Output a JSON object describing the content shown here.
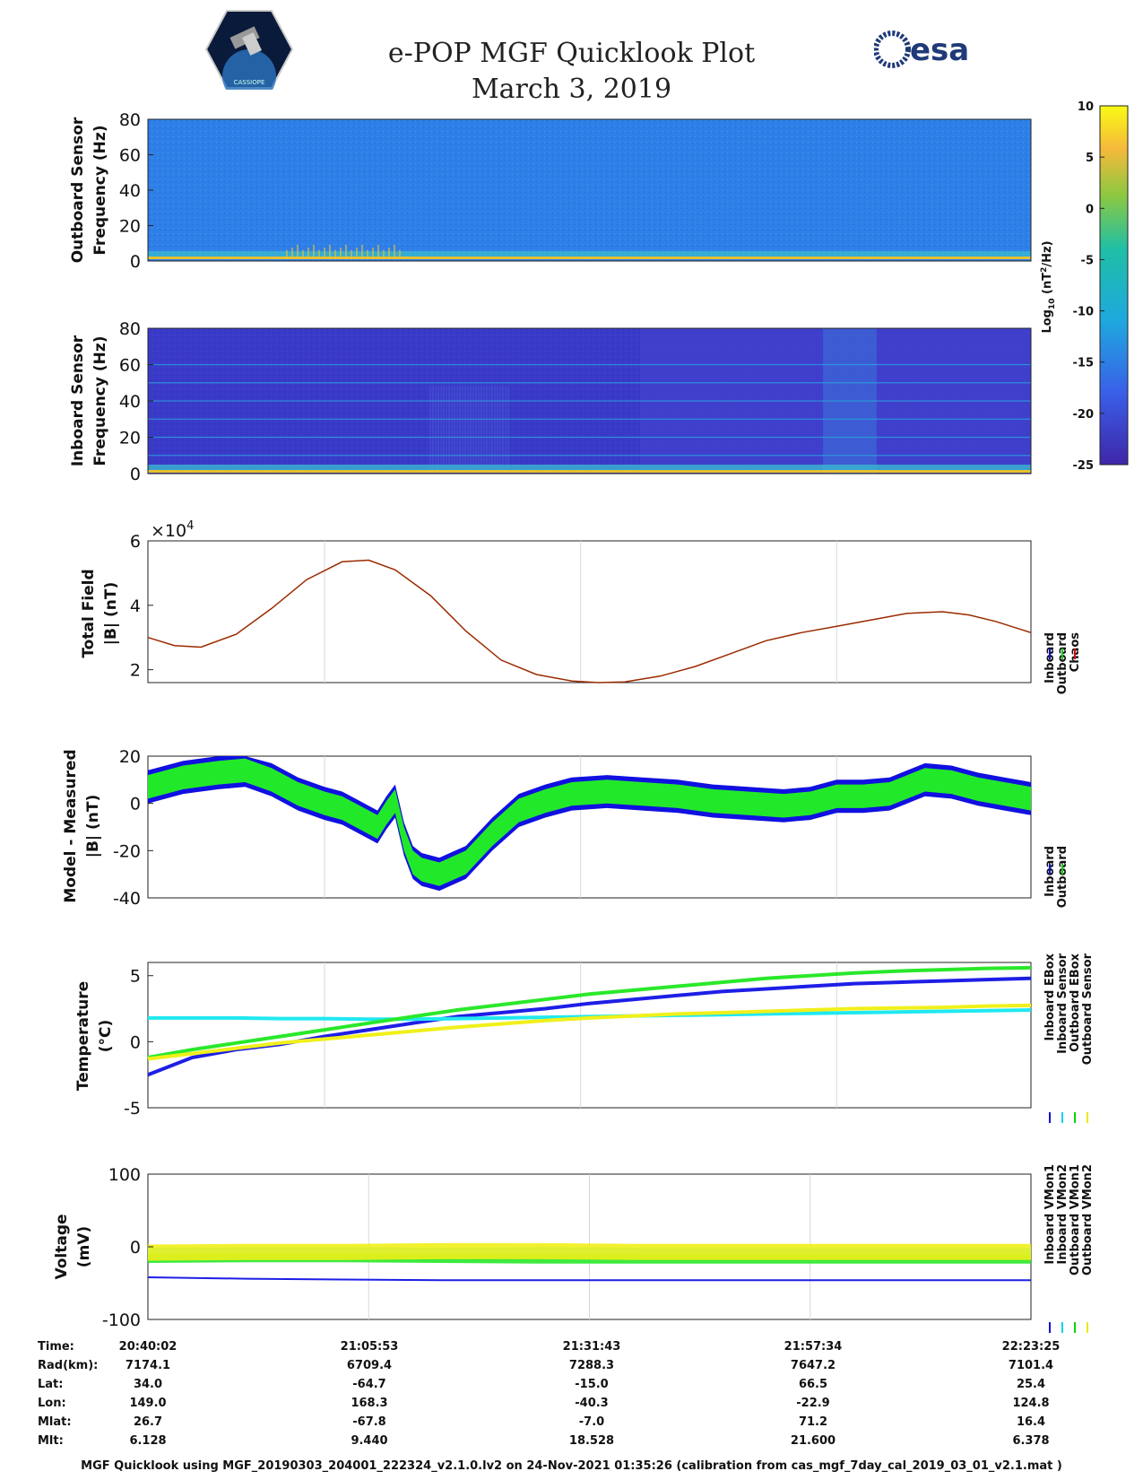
{
  "header": {
    "title_line1": "e-POP MGF Quicklook Plot",
    "title_line2": "March 3, 2019",
    "left_logo_text": "CASSIOPE",
    "right_logo_text": "esa"
  },
  "colorbar": {
    "ticks": [
      "10",
      "5",
      "0",
      "-5",
      "-10",
      "-15",
      "-20",
      "-25"
    ],
    "label": "Log10 (nT2/Hz)",
    "label_parts": {
      "a": "Log",
      "sub": "10",
      "b": " (nT",
      "sup": "2",
      "c": "/Hz)"
    },
    "range": [
      -25,
      10
    ]
  },
  "chart_data": [
    {
      "type": "heatmap",
      "name": "outboard-spectrogram",
      "ylabel_line1": "Outboard Sensor",
      "ylabel_line2": "Frequency (Hz)",
      "ytick_labels": [
        "80",
        "60",
        "40",
        "20",
        "0"
      ],
      "ylim": [
        0,
        80
      ],
      "colors": {
        "background": "#2f7fe8",
        "band": "#e6c12e"
      }
    },
    {
      "type": "heatmap",
      "name": "inboard-spectrogram",
      "ylabel_line1": "Inboard Sensor",
      "ylabel_line2": "Frequency (Hz)",
      "ytick_labels": [
        "80",
        "60",
        "40",
        "20",
        "0"
      ],
      "ylim": [
        0,
        80
      ],
      "harmonic_lines_hz": [
        10,
        20,
        30,
        40,
        50,
        60
      ],
      "colors": {
        "background": "#3a3ac9",
        "line": "#2aa6e0",
        "band": "#e6c12e"
      }
    },
    {
      "type": "line",
      "name": "total-field",
      "ylabel_line1": "Total Field",
      "ylabel_line2": "|B| (nT)",
      "multiplier_label": "×10",
      "multiplier_exp": "4",
      "ytick_labels": [
        "6",
        "4",
        "2"
      ],
      "ylim": [
        1.6,
        6
      ],
      "x_frac": [
        0,
        0.03,
        0.06,
        0.1,
        0.14,
        0.18,
        0.22,
        0.25,
        0.28,
        0.32,
        0.36,
        0.4,
        0.44,
        0.48,
        0.51,
        0.54,
        0.58,
        0.62,
        0.66,
        0.7,
        0.74,
        0.78,
        0.82,
        0.86,
        0.9,
        0.93,
        0.96,
        1
      ],
      "series": [
        {
          "name": "Chaos",
          "color": "#b22000",
          "values": [
            3.0,
            2.75,
            2.7,
            3.1,
            3.9,
            4.8,
            5.35,
            5.4,
            5.1,
            4.3,
            3.2,
            2.3,
            1.85,
            1.65,
            1.6,
            1.62,
            1.8,
            2.1,
            2.5,
            2.9,
            3.15,
            3.35,
            3.55,
            3.75,
            3.8,
            3.7,
            3.5,
            3.15
          ]
        }
      ],
      "legend": [
        "Inboard",
        "Outboard",
        "Chaos"
      ],
      "legend_colors": [
        "#1010d0",
        "#10d010",
        "#d01010"
      ]
    },
    {
      "type": "area",
      "name": "model-minus-measured",
      "ylabel_line1": "Model - Measured",
      "ylabel_line2": "|B| (nT)",
      "ytick_labels": [
        "20",
        "0",
        "-20",
        "-40"
      ],
      "ylim": [
        -40,
        20
      ],
      "x_frac": [
        0,
        0.04,
        0.08,
        0.11,
        0.14,
        0.17,
        0.2,
        0.22,
        0.24,
        0.26,
        0.27,
        0.28,
        0.29,
        0.3,
        0.31,
        0.33,
        0.36,
        0.39,
        0.42,
        0.45,
        0.48,
        0.52,
        0.56,
        0.6,
        0.64,
        0.68,
        0.72,
        0.75,
        0.78,
        0.81,
        0.84,
        0.86,
        0.88,
        0.91,
        0.94,
        0.97,
        1
      ],
      "series": [
        {
          "name": "Inboard",
          "color": "#0b0be0",
          "values": [
            7,
            11,
            13,
            14,
            10,
            4,
            0,
            -2,
            -6,
            -10,
            -4,
            1,
            -15,
            -25,
            -28,
            -30,
            -25,
            -13,
            -3,
            1,
            4,
            5,
            4,
            3,
            1,
            0,
            -1,
            0,
            3,
            3,
            4,
            7,
            10,
            9,
            6,
            4,
            2
          ]
        },
        {
          "name": "Outboard",
          "color": "#22e82a",
          "values": [
            7,
            11,
            13,
            14,
            10,
            4,
            0,
            -2,
            -6,
            -10,
            -4,
            1,
            -15,
            -25,
            -28,
            -30,
            -25,
            -13,
            -3,
            1,
            4,
            5,
            4,
            3,
            1,
            0,
            -1,
            0,
            3,
            3,
            4,
            7,
            10,
            9,
            6,
            4,
            2
          ]
        }
      ],
      "band_half_width": {
        "Inboard": 7,
        "Outboard": 5
      },
      "legend": [
        "Inboard",
        "Outboard"
      ],
      "legend_colors": [
        "#1010d0",
        "#10d010"
      ]
    },
    {
      "type": "line",
      "name": "temperature",
      "ylabel_line1": "Temperature",
      "ylabel_line2": "(°C)",
      "ytick_labels": [
        "5",
        "0",
        "-5"
      ],
      "ylim": [
        -5,
        6
      ],
      "x_frac": [
        0,
        0.05,
        0.1,
        0.15,
        0.2,
        0.25,
        0.3,
        0.35,
        0.4,
        0.45,
        0.5,
        0.55,
        0.6,
        0.65,
        0.7,
        0.75,
        0.8,
        0.85,
        0.9,
        0.95,
        1
      ],
      "series": [
        {
          "name": "Inboard EBox",
          "color": "#1e1ee6",
          "values": [
            -2.5,
            -1.2,
            -0.6,
            -0.2,
            0.4,
            0.9,
            1.4,
            1.9,
            2.2,
            2.5,
            2.9,
            3.2,
            3.5,
            3.8,
            4.0,
            4.2,
            4.4,
            4.5,
            4.6,
            4.7,
            4.8
          ]
        },
        {
          "name": "Inboard Sensor",
          "color": "#20e8f0",
          "values": [
            1.8,
            1.8,
            1.8,
            1.75,
            1.75,
            1.7,
            1.7,
            1.75,
            1.8,
            1.85,
            1.9,
            1.95,
            2.0,
            2.05,
            2.1,
            2.15,
            2.2,
            2.25,
            2.3,
            2.35,
            2.4
          ]
        },
        {
          "name": "Outboard EBox",
          "color": "#2ae82a",
          "values": [
            -1.2,
            -0.6,
            -0.1,
            0.4,
            0.9,
            1.4,
            1.9,
            2.4,
            2.8,
            3.2,
            3.6,
            3.9,
            4.2,
            4.5,
            4.8,
            5.0,
            5.2,
            5.35,
            5.45,
            5.55,
            5.6
          ]
        },
        {
          "name": "Outboard Sensor",
          "color": "#f0f01a",
          "values": [
            -1.3,
            -0.9,
            -0.5,
            -0.1,
            0.2,
            0.5,
            0.8,
            1.1,
            1.35,
            1.6,
            1.8,
            1.95,
            2.1,
            2.2,
            2.3,
            2.4,
            2.5,
            2.55,
            2.6,
            2.7,
            2.75
          ]
        }
      ],
      "legend": [
        "Inboard EBox",
        "Inboard Sensor",
        "Outboard EBox",
        "Outboard Sensor"
      ],
      "legend_colors": [
        "#1010d0",
        "#10d0f0",
        "#10d010",
        "#e8e810"
      ]
    },
    {
      "type": "line",
      "name": "voltage",
      "ylabel_line1": "Voltage",
      "ylabel_line2": "(mV)",
      "ytick_labels": [
        "100",
        "0",
        "-100"
      ],
      "ylim": [
        -100,
        100
      ],
      "series": [
        {
          "name": "Inboard VMon1",
          "color": "#1e1ee6",
          "values": [
            -42,
            -44,
            -45,
            -46,
            -46,
            -46,
            -46,
            -46,
            -46,
            -46
          ]
        },
        {
          "name": "Inboard VMon2",
          "color": "#20e8f0",
          "values": [
            -10,
            -9,
            -9,
            -10,
            -9,
            -10,
            -10,
            -10,
            -10,
            -10
          ]
        },
        {
          "name": "Outboard VMon1",
          "color": "#2ae82a",
          "values": [
            -16,
            -15,
            -15,
            -16,
            -17,
            -17,
            -17,
            -17,
            -17,
            -17
          ]
        },
        {
          "name": "Outboard VMon2",
          "color": "#f0f01a",
          "values": [
            -8,
            -7,
            -7,
            -6,
            -6,
            -7,
            -7,
            -7,
            -7,
            -7
          ]
        }
      ],
      "legend": [
        "Inboard VMon1",
        "Inboard VMon2",
        "Outboard VMon1",
        "Outboard VMon2"
      ],
      "legend_colors": [
        "#1010d0",
        "#10d0f0",
        "#10d010",
        "#e8e810"
      ]
    }
  ],
  "ephemeris": {
    "row_labels": [
      "Time:",
      "Rad(km):",
      "Lat:",
      "Lon:",
      "Mlat:",
      "Mlt:"
    ],
    "columns": [
      [
        "20:40:02",
        "7174.1",
        "34.0",
        "149.0",
        "26.7",
        "6.128"
      ],
      [
        "21:05:53",
        "6709.4",
        "-64.7",
        "168.3",
        "-67.8",
        "9.440"
      ],
      [
        "21:31:43",
        "7288.3",
        "-15.0",
        "-40.3",
        "-7.0",
        "18.528"
      ],
      [
        "21:57:34",
        "7647.2",
        "66.5",
        "-22.9",
        "71.2",
        "21.600"
      ],
      [
        "22:23:25",
        "7101.4",
        "25.4",
        "124.8",
        "16.4",
        "6.378"
      ]
    ]
  },
  "footer": "MGF Quicklook using MGF_20190303_204001_222324_v2.1.0.lv2 on 24-Nov-2021 01:35:26 (calibration from cas_mgf_7day_cal_2019_03_01_v2.1.mat )"
}
